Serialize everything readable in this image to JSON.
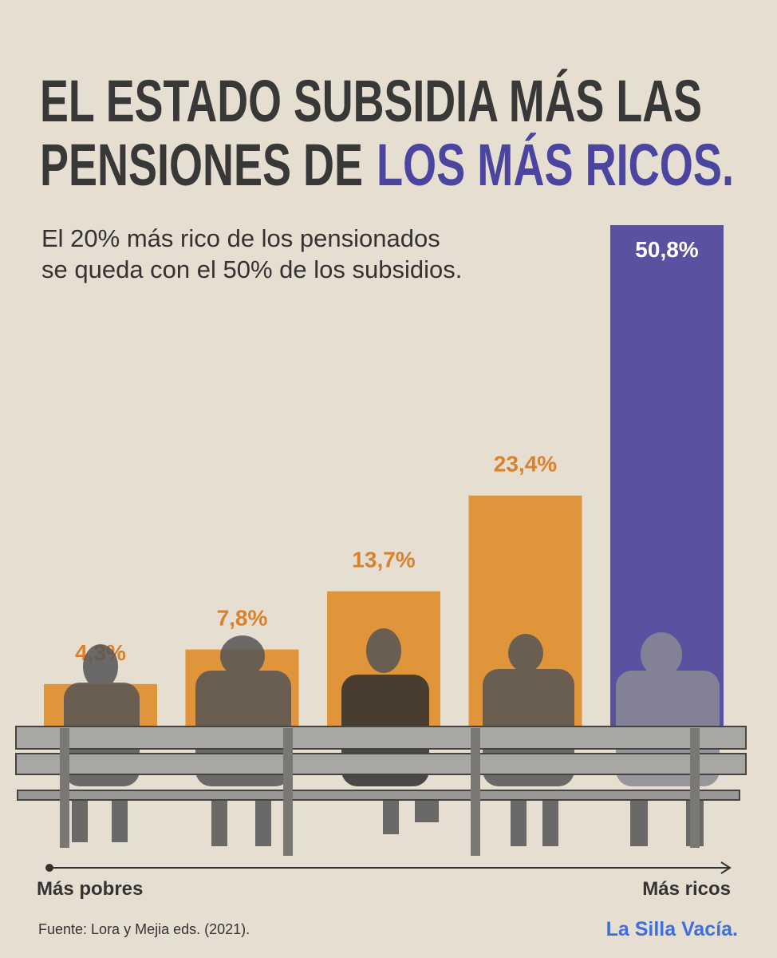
{
  "chart_data": {
    "type": "bar",
    "title_line1": "EL ESTADO SUBSIDIA MÁS LAS",
    "title_line2": "PENSIONES DE",
    "title_highlight": "LOS MÁS RICOS.",
    "subtitle": [
      "El 20% más rico de los pensionados",
      "se queda con el 50% de los subsidios."
    ],
    "categories": [
      null,
      null,
      null,
      null,
      null
    ],
    "values": [
      4.3,
      7.8,
      13.7,
      23.4,
      50.8
    ],
    "value_labels": [
      "4,3%",
      "7,8%",
      "13,7%",
      "23,4%",
      "50,8%"
    ],
    "colors": [
      "#e0953a",
      "#e0953a",
      "#e0953a",
      "#e0953a",
      "#5a51a0"
    ],
    "x_axis_start": "Más pobres",
    "x_axis_end": "Más ricos",
    "source": "Fuente: Lora y Mejia eds. (2021).",
    "logo": "La Silla Vacía."
  }
}
